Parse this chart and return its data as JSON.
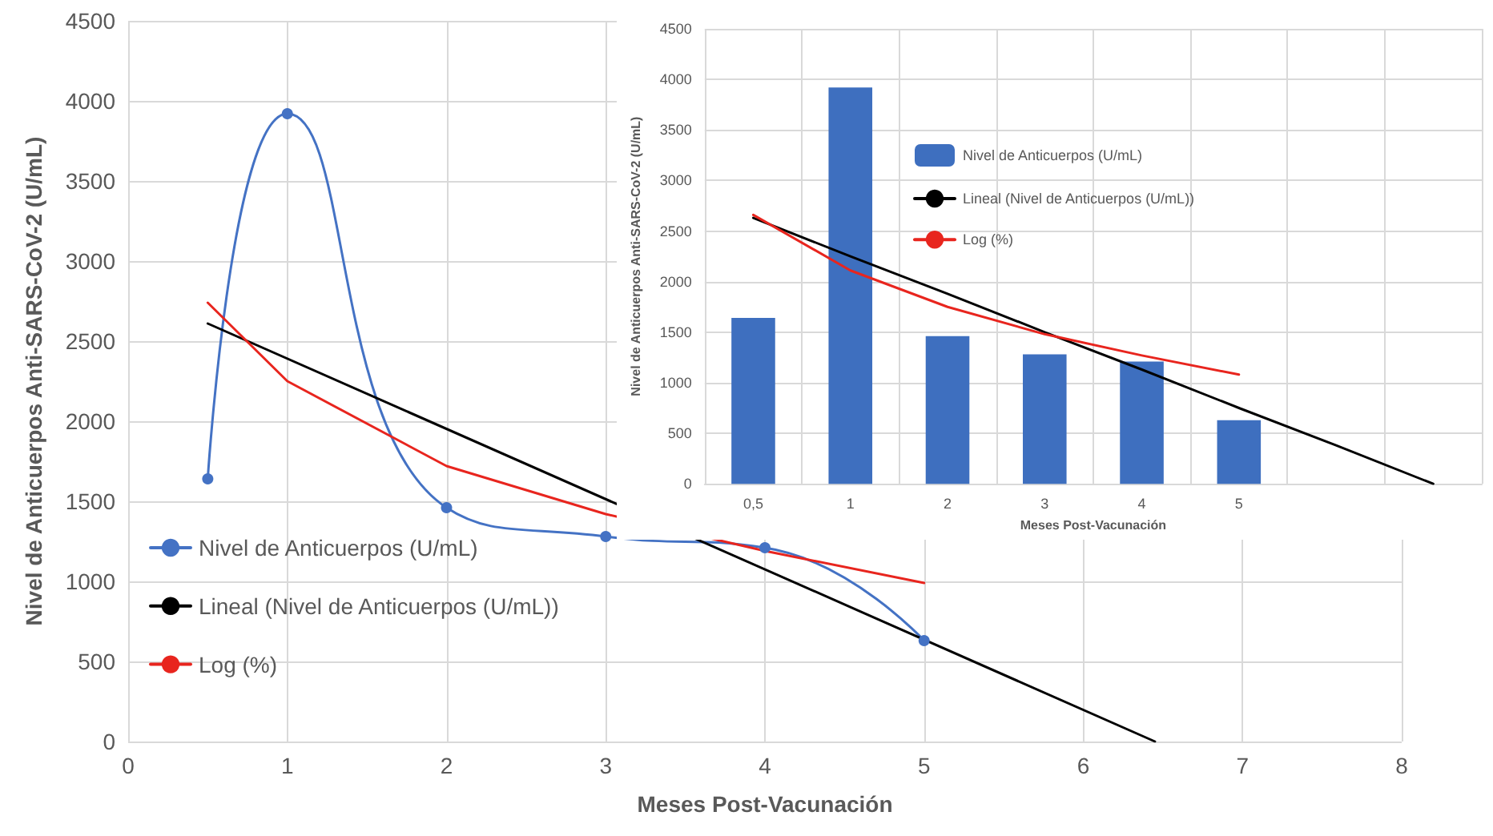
{
  "chart_data": [
    {
      "type": "line",
      "xlabel": "Meses Post-Vacunación",
      "ylabel": "Nivel de Anticuerpos Anti-SARS-CoV-2 (U/mL)",
      "xlim": [
        0,
        8
      ],
      "xticks": [
        0,
        1,
        2,
        3,
        4,
        5,
        6,
        7,
        8
      ],
      "ylim": [
        0,
        4500
      ],
      "yticks": [
        0,
        500,
        1000,
        1500,
        2000,
        2500,
        3000,
        3500,
        4000,
        4500
      ],
      "grid": true,
      "legend": "left",
      "series": [
        {
          "name": "Nivel de Anticuerpos (U/mL)",
          "color": "#4472c4",
          "marker": "circle",
          "x": [
            0.5,
            1,
            2,
            3,
            4,
            5
          ],
          "values": [
            1640,
            3920,
            1460,
            1280,
            1210,
            630
          ]
        },
        {
          "name": "Lineal (Nivel de Anticuerpos (U/mL))",
          "color": "#000000",
          "marker": "none",
          "x": [
            0.5,
            6.45
          ],
          "values": [
            2610,
            0
          ]
        },
        {
          "name": "Log (%)",
          "color": "#e8251e",
          "marker": "none",
          "x": [
            0.5,
            1,
            2,
            3,
            4,
            5
          ],
          "values": [
            2740,
            2250,
            1720,
            1420,
            1190,
            990
          ]
        }
      ]
    },
    {
      "type": "bar",
      "xlabel": "Meses Post-Vacunación",
      "ylabel": "Nivel de Anticuerpos Anti-SARS-CoV-2 (U/mL)",
      "categories": [
        "0,5",
        "1",
        "2",
        "3",
        "4",
        "5",
        null,
        null
      ],
      "ylim": [
        0,
        4500
      ],
      "yticks": [
        0,
        500,
        1000,
        1500,
        2000,
        2500,
        3000,
        3500,
        4000,
        4500
      ],
      "grid": true,
      "legend": "left",
      "series": [
        {
          "name": "Nivel de Anticuerpos (U/mL)",
          "color": "#3e6fbf",
          "values": [
            1640,
            3920,
            1460,
            1280,
            1210,
            630,
            null,
            null
          ]
        },
        {
          "name": "Lineal (Nivel de Anticuerpos (U/mL))",
          "type": "line",
          "color": "#000000",
          "marker": "none",
          "values": [
            2630,
            2250,
            1880,
            1500,
            1130,
            750,
            380,
            0
          ]
        },
        {
          "name": "Log (%)",
          "type": "line",
          "color": "#e8251e",
          "marker": "none",
          "values": [
            2660,
            2110,
            1750,
            1480,
            1270,
            1080,
            null,
            null
          ]
        }
      ]
    }
  ]
}
